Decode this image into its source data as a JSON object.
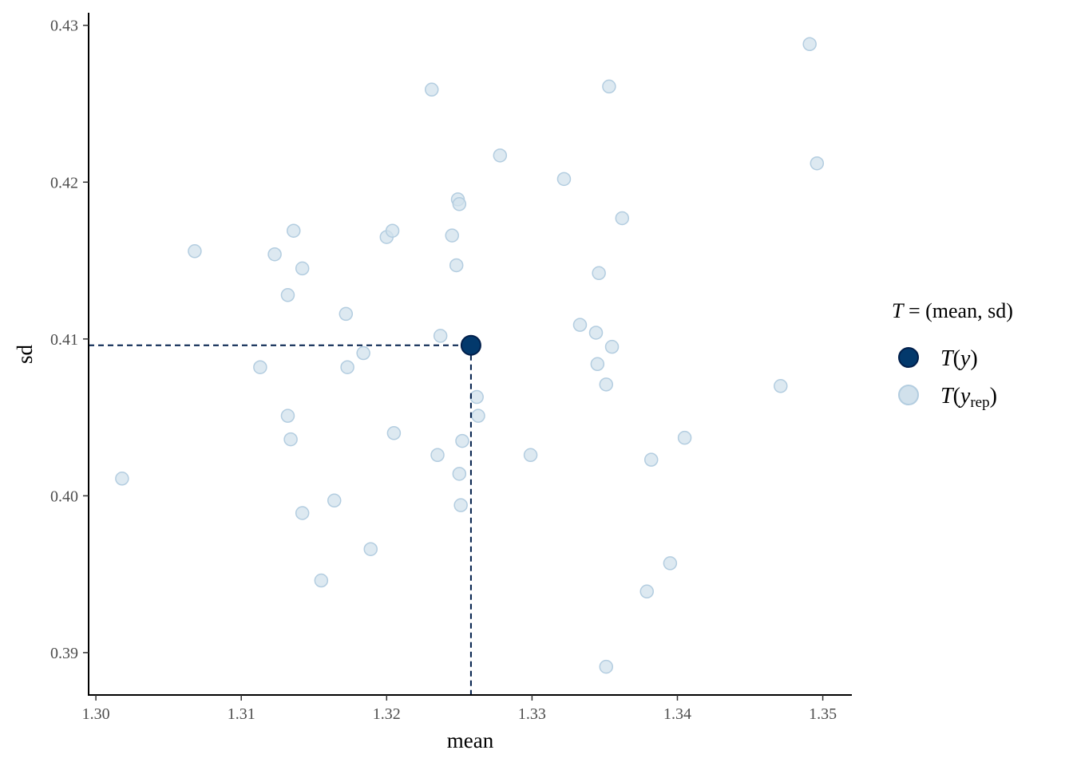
{
  "chart_data": {
    "type": "scatter",
    "xlabel": "mean",
    "ylabel": "sd",
    "xlim": [
      1.2995,
      1.352
    ],
    "ylim": [
      0.3873,
      0.4308
    ],
    "xticks": [
      "1.30",
      "1.31",
      "1.32",
      "1.33",
      "1.34",
      "1.35"
    ],
    "yticks": [
      "0.39",
      "0.40",
      "0.41",
      "0.42",
      "0.43"
    ],
    "grid": false,
    "legend": {
      "placement": "right",
      "title": "T = (mean, sd)",
      "title_parts": {
        "symbol": "T",
        "rest": " = (mean, sd)"
      },
      "entries": [
        {
          "label": "T(y)",
          "symbol": "T",
          "arg": "y",
          "sub": "",
          "color": "#03396c"
        },
        {
          "label": "T(y_rep)",
          "symbol": "T",
          "arg": "y",
          "sub": "rep",
          "color": "#d1e1ec"
        }
      ]
    },
    "observed": {
      "name": "T(y)",
      "x": 1.3258,
      "y": 0.4096,
      "color": "#03396c",
      "guide_lines": "dashed"
    },
    "replicated": {
      "name": "T(y_rep)",
      "color": "#d1e1ec",
      "points": [
        [
          1.3018,
          0.4011
        ],
        [
          1.3068,
          0.4156
        ],
        [
          1.3113,
          0.4082
        ],
        [
          1.3123,
          0.4154
        ],
        [
          1.3132,
          0.4128
        ],
        [
          1.3132,
          0.4051
        ],
        [
          1.3134,
          0.4036
        ],
        [
          1.3136,
          0.4169
        ],
        [
          1.3142,
          0.4145
        ],
        [
          1.3142,
          0.3989
        ],
        [
          1.3155,
          0.3946
        ],
        [
          1.3164,
          0.3997
        ],
        [
          1.3172,
          0.4116
        ],
        [
          1.3173,
          0.4082
        ],
        [
          1.3184,
          0.4091
        ],
        [
          1.3189,
          0.3966
        ],
        [
          1.32,
          0.4165
        ],
        [
          1.3204,
          0.4169
        ],
        [
          1.3205,
          0.404
        ],
        [
          1.3231,
          0.4259
        ],
        [
          1.3235,
          0.4026
        ],
        [
          1.3237,
          0.4102
        ],
        [
          1.3245,
          0.4166
        ],
        [
          1.3248,
          0.4147
        ],
        [
          1.3249,
          0.4189
        ],
        [
          1.325,
          0.4186
        ],
        [
          1.325,
          0.4014
        ],
        [
          1.3251,
          0.3994
        ],
        [
          1.3252,
          0.4035
        ],
        [
          1.3262,
          0.4063
        ],
        [
          1.3263,
          0.4051
        ],
        [
          1.3278,
          0.4217
        ],
        [
          1.3299,
          0.4026
        ],
        [
          1.3322,
          0.4202
        ],
        [
          1.3333,
          0.4109
        ],
        [
          1.3344,
          0.4104
        ],
        [
          1.3345,
          0.4084
        ],
        [
          1.3346,
          0.4142
        ],
        [
          1.3351,
          0.4071
        ],
        [
          1.3351,
          0.3891
        ],
        [
          1.3353,
          0.4261
        ],
        [
          1.3355,
          0.4095
        ],
        [
          1.3362,
          0.4177
        ],
        [
          1.3379,
          0.3939
        ],
        [
          1.3382,
          0.4023
        ],
        [
          1.3395,
          0.3957
        ],
        [
          1.3405,
          0.4037
        ],
        [
          1.3471,
          0.407
        ],
        [
          1.3491,
          0.4288
        ],
        [
          1.3496,
          0.4212
        ]
      ]
    }
  }
}
